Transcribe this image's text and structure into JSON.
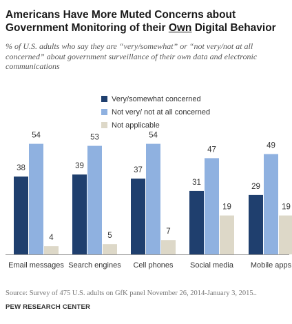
{
  "title": {
    "part1": "Americans Have More Muted Concerns about Government Monitoring of their ",
    "underlined": "Own",
    "part2": " Digital Behavior"
  },
  "subtitle": "% of U.S. adults who say they are “very/somewhat” or “not very/not at all concerned” about government surveillance of their own data and electronic communications",
  "legend": [
    {
      "label": "Very/somewhat concerned",
      "color": "#1f3f6e"
    },
    {
      "label": "Not very/ not at all concerned",
      "color": "#8fb1e0"
    },
    {
      "label": "Not applicable",
      "color": "#ddd8c8"
    }
  ],
  "chart_data": {
    "type": "bar",
    "categories": [
      "Email messages",
      "Search engines",
      "Cell phones",
      "Social media",
      "Mobile apps"
    ],
    "series": [
      {
        "name": "Very/somewhat concerned",
        "values": [
          38,
          39,
          37,
          31,
          29
        ],
        "color": "#1f3f6e"
      },
      {
        "name": "Not very/ not at all concerned",
        "values": [
          54,
          53,
          54,
          47,
          49
        ],
        "color": "#8fb1e0"
      },
      {
        "name": "Not applicable",
        "values": [
          4,
          5,
          7,
          19,
          19
        ],
        "color": "#ddd8c8"
      }
    ],
    "ylim": [
      0,
      60
    ],
    "grid": false
  },
  "source": "Source:  Survey of 475 U.S. adults on GfK panel November 26, 2014-January 3, 2015..",
  "brand": "PEW RESEARCH CENTER"
}
